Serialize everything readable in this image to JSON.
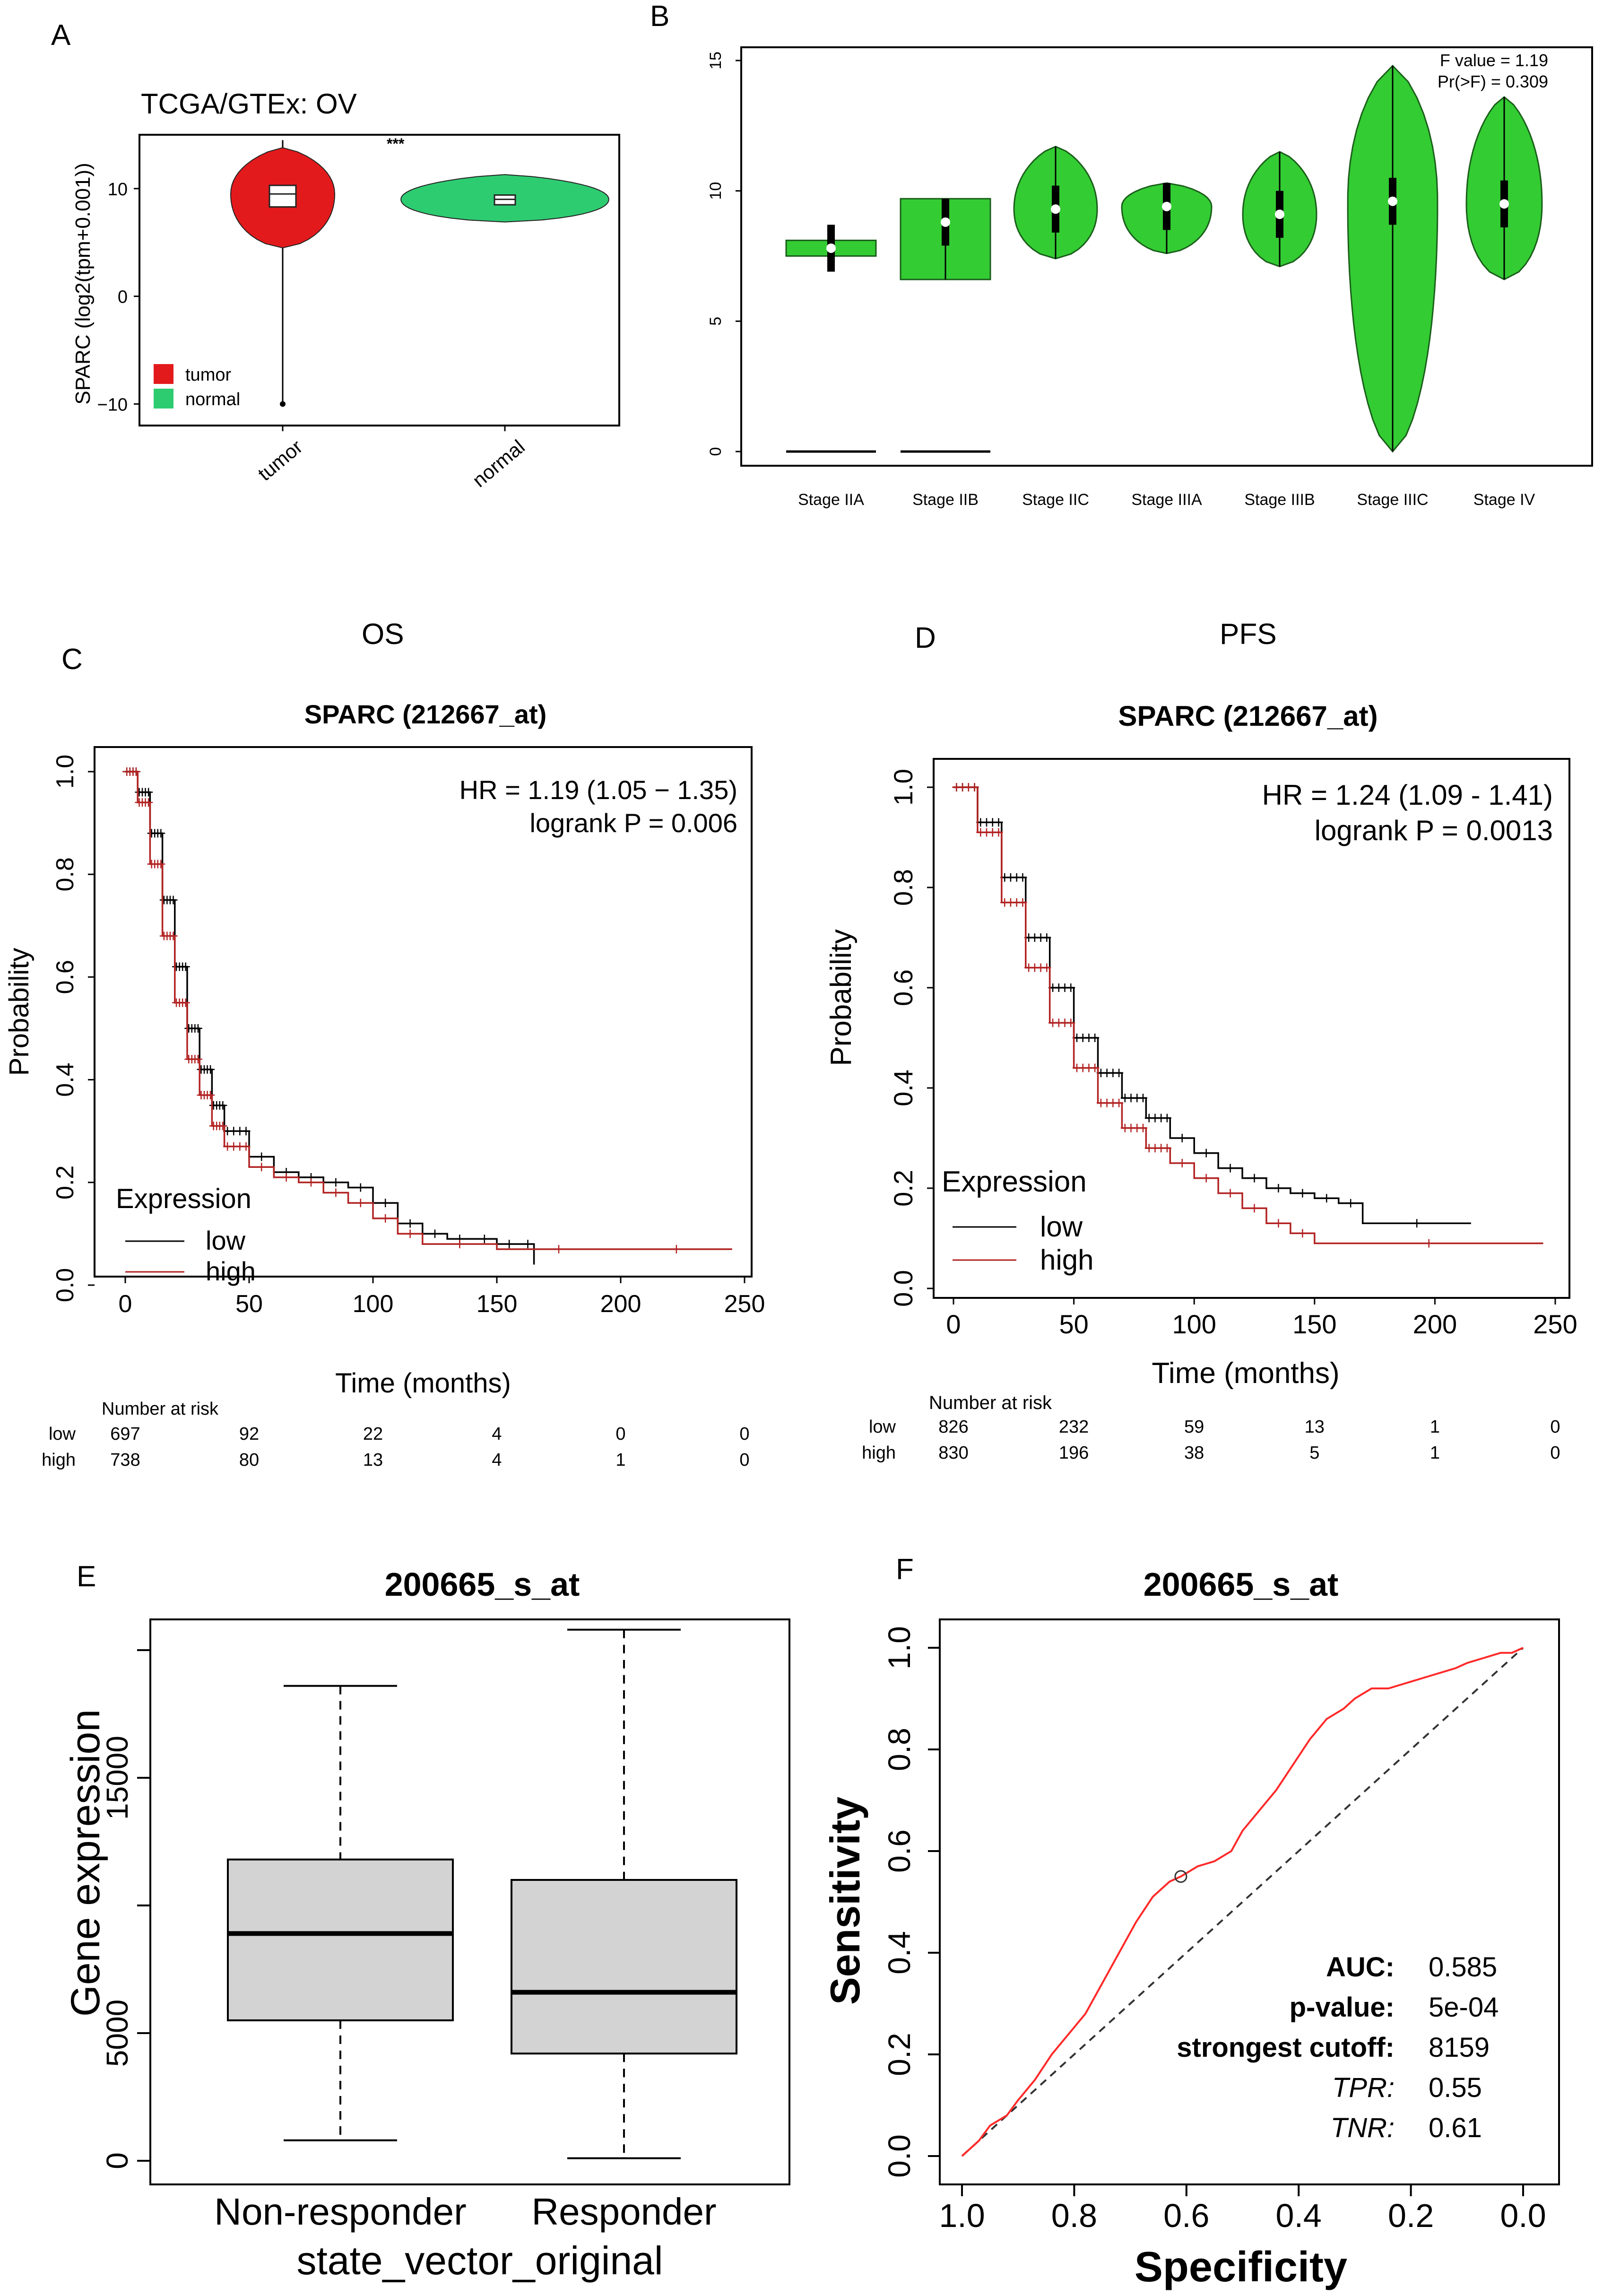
{
  "panels": {
    "A": "A",
    "B": "B",
    "C": "C",
    "D": "D",
    "E": "E",
    "F": "F"
  },
  "chart_data": [
    {
      "panel": "A",
      "type": "violin",
      "title": "TCGA/GTEx: OV",
      "ylabel": "SPARC (log2(tpm+0.001))",
      "categories": [
        "tumor",
        "normal"
      ],
      "yticks": [
        "10",
        "0",
        "−10"
      ],
      "ylim": [
        -12,
        15
      ],
      "legend": [
        {
          "name": "tumor",
          "color": "#e31a1c"
        },
        {
          "name": "normal",
          "color": "#2ecc71"
        }
      ],
      "significance": "***",
      "series": [
        {
          "name": "tumor",
          "median": 9.5,
          "q1": 8.3,
          "q3": 10.3,
          "min": -10,
          "max": 14.5
        },
        {
          "name": "normal",
          "median": 9.0,
          "q1": 8.5,
          "q3": 9.4,
          "min": 6.9,
          "max": 11.3
        }
      ]
    },
    {
      "panel": "B",
      "type": "violin",
      "categories": [
        "Stage IIA",
        "Stage IIB",
        "Stage IIC",
        "Stage IIIA",
        "Stage IIIB",
        "Stage IIIC",
        "Stage IV"
      ],
      "yticks": [
        "0",
        "5",
        "10",
        "15"
      ],
      "ylim": [
        -0.5,
        15.5
      ],
      "annotation": [
        "F value = 1.19",
        "Pr(>F) = 0.309"
      ],
      "color": "#33cc33",
      "series": [
        {
          "name": "Stage IIA",
          "median": 7.8,
          "min": 7.5,
          "max": 8.1
        },
        {
          "name": "Stage IIB",
          "median": 8.8,
          "min": 6.6,
          "max": 9.7
        },
        {
          "name": "Stage IIC",
          "median": 9.3,
          "min": 7.4,
          "max": 11.7
        },
        {
          "name": "Stage IIIA",
          "median": 9.4,
          "min": 7.6,
          "max": 10.3
        },
        {
          "name": "Stage IIIB",
          "median": 9.1,
          "min": 7.1,
          "max": 11.5
        },
        {
          "name": "Stage IIIC",
          "median": 9.6,
          "min": 0.0,
          "max": 14.8
        },
        {
          "name": "Stage IV",
          "median": 9.5,
          "min": 6.6,
          "max": 13.6
        }
      ]
    },
    {
      "panel": "C",
      "type": "line",
      "header": "OS",
      "title": "SPARC (212667_at)",
      "xlabel": "Time (months)",
      "ylabel": "Probability",
      "xticks": [
        "0",
        "50",
        "100",
        "150",
        "200",
        "250"
      ],
      "yticks": [
        "0.0",
        "0.2",
        "0.4",
        "0.6",
        "0.8",
        "1.0"
      ],
      "xlim": [
        0,
        250
      ],
      "ylim": [
        0,
        1
      ],
      "annotation": [
        "HR = 1.19 (1.05 − 1.35)",
        "logrank P = 0.006"
      ],
      "legend_title": "Expression",
      "series": [
        {
          "name": "low",
          "color": "#000000",
          "x": [
            0,
            5,
            10,
            15,
            20,
            25,
            30,
            35,
            40,
            50,
            60,
            70,
            80,
            90,
            100,
            110,
            120,
            130,
            140,
            150,
            160,
            165
          ],
          "y": [
            1.0,
            0.96,
            0.88,
            0.75,
            0.62,
            0.5,
            0.42,
            0.35,
            0.3,
            0.25,
            0.22,
            0.21,
            0.2,
            0.19,
            0.16,
            0.12,
            0.1,
            0.09,
            0.09,
            0.08,
            0.08,
            0.04
          ]
        },
        {
          "name": "high",
          "color": "#b22222",
          "x": [
            0,
            5,
            10,
            15,
            20,
            25,
            30,
            35,
            40,
            50,
            60,
            70,
            80,
            90,
            100,
            110,
            120,
            150,
            200,
            245
          ],
          "y": [
            1.0,
            0.94,
            0.82,
            0.68,
            0.55,
            0.44,
            0.37,
            0.31,
            0.27,
            0.23,
            0.21,
            0.2,
            0.18,
            0.16,
            0.13,
            0.1,
            0.08,
            0.07,
            0.07,
            0.07
          ]
        }
      ],
      "risk_table": {
        "title": "Number at risk",
        "times": [
          "0",
          "50",
          "100",
          "150",
          "200",
          "250"
        ],
        "rows": [
          {
            "label": "low",
            "values": [
              "697",
              "92",
              "22",
              "4",
              "0",
              "0"
            ]
          },
          {
            "label": "high",
            "values": [
              "738",
              "80",
              "13",
              "4",
              "1",
              "0"
            ]
          }
        ]
      }
    },
    {
      "panel": "D",
      "type": "line",
      "header": "PFS",
      "title": "SPARC (212667_at)",
      "xlabel": "Time (months)",
      "ylabel": "Probability",
      "xticks": [
        "0",
        "50",
        "100",
        "150",
        "200",
        "250"
      ],
      "yticks": [
        "0.0",
        "0.2",
        "0.4",
        "0.6",
        "0.8",
        "1.0"
      ],
      "xlim": [
        0,
        250
      ],
      "ylim": [
        0,
        1
      ],
      "annotation": [
        "HR = 1.24 (1.09 - 1.41)",
        "logrank P = 0.0013"
      ],
      "legend_title": "Expression",
      "series": [
        {
          "name": "low",
          "color": "#000000",
          "x": [
            0,
            10,
            20,
            30,
            40,
            50,
            60,
            70,
            80,
            90,
            100,
            110,
            120,
            130,
            140,
            150,
            160,
            170,
            215
          ],
          "y": [
            1.0,
            0.93,
            0.82,
            0.7,
            0.6,
            0.5,
            0.43,
            0.38,
            0.34,
            0.3,
            0.27,
            0.24,
            0.22,
            0.2,
            0.19,
            0.18,
            0.17,
            0.13,
            0.13
          ]
        },
        {
          "name": "high",
          "color": "#b22222",
          "x": [
            0,
            10,
            20,
            30,
            40,
            50,
            60,
            70,
            80,
            90,
            100,
            110,
            120,
            130,
            140,
            150,
            245
          ],
          "y": [
            1.0,
            0.91,
            0.77,
            0.64,
            0.53,
            0.44,
            0.37,
            0.32,
            0.28,
            0.25,
            0.22,
            0.19,
            0.16,
            0.13,
            0.11,
            0.09,
            0.09
          ]
        }
      ],
      "risk_table": {
        "title": "Number at risk",
        "times": [
          "0",
          "50",
          "100",
          "150",
          "200",
          "250"
        ],
        "rows": [
          {
            "label": "low",
            "values": [
              "826",
              "232",
              "59",
              "13",
              "1",
              "0"
            ]
          },
          {
            "label": "high",
            "values": [
              "830",
              "196",
              "38",
              "5",
              "1",
              "0"
            ]
          }
        ]
      }
    },
    {
      "panel": "E",
      "type": "box",
      "title": "200665_s_at",
      "xlabel": "state_vector_original",
      "ylabel": "Gene expression",
      "categories": [
        "Non-responder",
        "Responder"
      ],
      "yticks": [
        "0",
        "5000",
        "15000"
      ],
      "ylim": [
        0,
        21000
      ],
      "series": [
        {
          "name": "Non-responder",
          "min": 800,
          "q1": 5500,
          "median": 8900,
          "q3": 11800,
          "max": 18600
        },
        {
          "name": "Responder",
          "min": 100,
          "q1": 4200,
          "median": 6600,
          "q3": 11000,
          "max": 20800
        }
      ]
    },
    {
      "panel": "F",
      "type": "line",
      "title": "200665_s_at",
      "xlabel": "Specificity",
      "ylabel": "Sensitivity",
      "xticks": [
        "1.0",
        "0.8",
        "0.6",
        "0.4",
        "0.2",
        "0.0"
      ],
      "yticks": [
        "0.0",
        "0.2",
        "0.4",
        "0.6",
        "0.8",
        "1.0"
      ],
      "xlim": [
        1,
        0
      ],
      "ylim": [
        0,
        1
      ],
      "stats": [
        {
          "label": "AUC:",
          "value": "0.585"
        },
        {
          "label": "p-value:",
          "value": "5e-04"
        },
        {
          "label": "strongest cutoff:",
          "value": "8159"
        },
        {
          "label": "TPR:",
          "value": "0.55"
        },
        {
          "label": "TNR:",
          "value": "0.61"
        }
      ],
      "cutoff_point": {
        "specificity": 0.61,
        "sensitivity": 0.55
      },
      "series": [
        {
          "name": "ROC",
          "color": "#ff2a2a",
          "x": [
            1.0,
            0.97,
            0.95,
            0.92,
            0.9,
            0.87,
            0.84,
            0.81,
            0.78,
            0.75,
            0.72,
            0.69,
            0.66,
            0.63,
            0.61,
            0.58,
            0.55,
            0.52,
            0.5,
            0.47,
            0.44,
            0.41,
            0.38,
            0.35,
            0.32,
            0.3,
            0.27,
            0.24,
            0.21,
            0.18,
            0.15,
            0.12,
            0.1,
            0.07,
            0.04,
            0.02,
            0.0
          ],
          "y": [
            0.0,
            0.03,
            0.06,
            0.08,
            0.11,
            0.15,
            0.2,
            0.24,
            0.28,
            0.34,
            0.4,
            0.46,
            0.51,
            0.54,
            0.55,
            0.57,
            0.58,
            0.6,
            0.64,
            0.68,
            0.72,
            0.77,
            0.82,
            0.86,
            0.88,
            0.9,
            0.92,
            0.92,
            0.93,
            0.94,
            0.95,
            0.96,
            0.97,
            0.98,
            0.99,
            0.99,
            1.0
          ]
        }
      ]
    }
  ]
}
